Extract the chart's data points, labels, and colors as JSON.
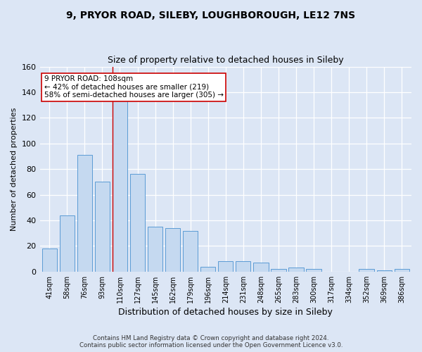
{
  "title1": "9, PRYOR ROAD, SILEBY, LOUGHBOROUGH, LE12 7NS",
  "title2": "Size of property relative to detached houses in Sileby",
  "xlabel": "Distribution of detached houses by size in Sileby",
  "ylabel": "Number of detached properties",
  "categories": [
    "41sqm",
    "58sqm",
    "76sqm",
    "93sqm",
    "110sqm",
    "127sqm",
    "145sqm",
    "162sqm",
    "179sqm",
    "196sqm",
    "214sqm",
    "231sqm",
    "248sqm",
    "265sqm",
    "283sqm",
    "300sqm",
    "317sqm",
    "334sqm",
    "352sqm",
    "369sqm",
    "386sqm"
  ],
  "values": [
    18,
    44,
    91,
    70,
    134,
    76,
    35,
    34,
    32,
    4,
    8,
    8,
    7,
    2,
    3,
    2,
    0,
    0,
    2,
    1,
    2
  ],
  "bar_color": "#c5d9f0",
  "bar_edge_color": "#5b9bd5",
  "highlight_index": 4,
  "highlight_line_color": "#cc0000",
  "ylim": [
    0,
    160
  ],
  "yticks": [
    0,
    20,
    40,
    60,
    80,
    100,
    120,
    140,
    160
  ],
  "annotation_line1": "9 PRYOR ROAD: 108sqm",
  "annotation_line2": "← 42% of detached houses are smaller (219)",
  "annotation_line3": "58% of semi-detached houses are larger (305) →",
  "annotation_box_color": "#ffffff",
  "annotation_box_edge": "#cc0000",
  "footer_line1": "Contains HM Land Registry data © Crown copyright and database right 2024.",
  "footer_line2": "Contains public sector information licensed under the Open Government Licence v3.0.",
  "background_color": "#dce6f5",
  "plot_bg_color": "#dce6f5",
  "grid_color": "#ffffff",
  "title1_fontsize": 10,
  "title2_fontsize": 9
}
